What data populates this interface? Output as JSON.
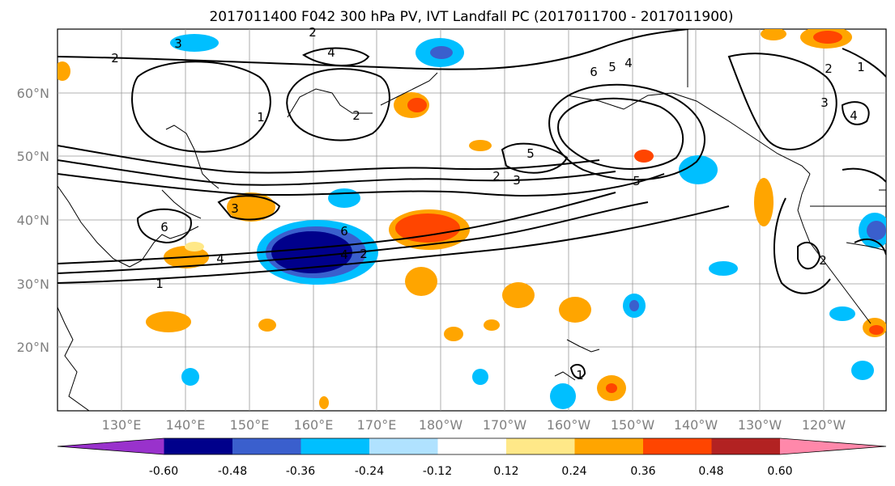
{
  "title": "2017011400 F042 300 hPa PV, IVT Landfall PC (2017011700 - 2017011900)",
  "lat_labels": [
    "60°N",
    "50°N",
    "40°N",
    "30°N",
    "20°N"
  ],
  "lon_labels": [
    "130°E",
    "140°E",
    "150°E",
    "160°E",
    "170°E",
    "180°W",
    "170°W",
    "160°W",
    "150°W",
    "140°W",
    "130°W",
    "120°W"
  ],
  "colorbar": {
    "colors": [
      "#9932CC",
      "#00008B",
      "#3A5FCD",
      "#00BFFF",
      "#B0E2FF",
      "#FFFFFF",
      "#FFE888",
      "#FFA500",
      "#FF4500",
      "#B22222",
      "#FF88AA"
    ],
    "tick_labels": [
      "-0.60",
      "-0.48",
      "-0.36",
      "-0.24",
      "-0.12",
      "0.12",
      "0.24",
      "0.36",
      "0.48",
      "0.60"
    ]
  },
  "contour_labels": [
    "3",
    "2",
    "2",
    "4",
    "1",
    "2",
    "6",
    "5",
    "4",
    "1",
    "2",
    "3",
    "4",
    "4",
    "5",
    "3",
    "2",
    "5",
    "3",
    "6",
    "6",
    "2",
    "2",
    "4",
    "1",
    "1"
  ]
}
